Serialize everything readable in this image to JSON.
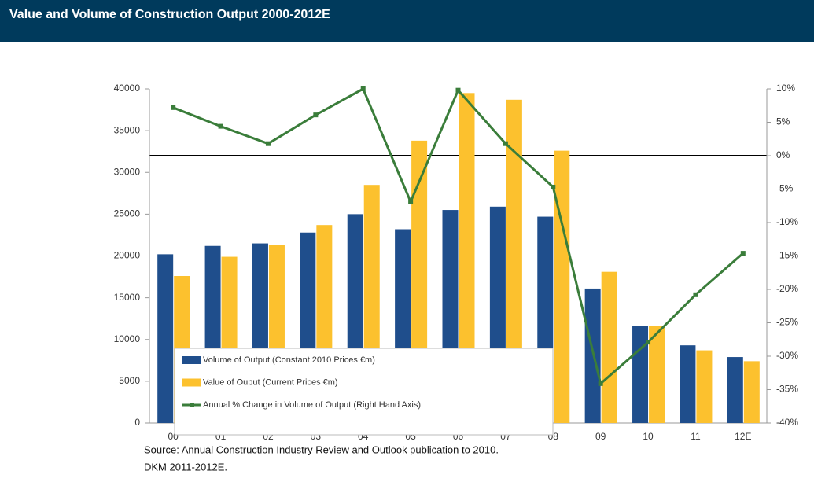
{
  "chart_data": {
    "type": "bar_line",
    "title": "Value and Volume of Construction Output 2000-2012E",
    "categories": [
      "00",
      "01",
      "02",
      "03",
      "04",
      "05",
      "06",
      "07",
      "08",
      "09",
      "10",
      "11",
      "12E"
    ],
    "series": [
      {
        "name": "Volume of Output (Constant 2010 Prices €m)",
        "color": "#1f4e8c",
        "type": "bar",
        "values": [
          20200,
          21200,
          21500,
          22800,
          25000,
          23200,
          25500,
          25900,
          24700,
          16100,
          11600,
          9300,
          7900
        ]
      },
      {
        "name": "Value of Ouput (Current Prices €m)",
        "color": "#fcc12e",
        "type": "bar",
        "values": [
          17600,
          19900,
          21300,
          23700,
          28500,
          33800,
          39500,
          38700,
          32600,
          18100,
          11600,
          8700,
          7400
        ]
      },
      {
        "name": "Annual % Change in Volume of Output (Right Hand Axis)",
        "color": "#3a7d3a",
        "type": "line",
        "axis": "y2",
        "values": [
          7.2,
          4.4,
          1.8,
          6.1,
          10,
          -6.9,
          9.8,
          1.8,
          -4.7,
          -34.1,
          -27.9,
          -20.8,
          -14.6
        ]
      }
    ],
    "ylim": [
      0,
      40000
    ],
    "yticks": [
      0,
      5000,
      10000,
      15000,
      20000,
      25000,
      30000,
      35000,
      40000
    ],
    "y2lim": [
      -40,
      10
    ],
    "y2ticks": [
      {
        "value": -40,
        "label": "-40%"
      },
      {
        "value": -35,
        "label": "-35%"
      },
      {
        "value": -30,
        "label": "-30%"
      },
      {
        "value": -25,
        "label": "-25%"
      },
      {
        "value": -20,
        "label": "-20%"
      },
      {
        "value": -15,
        "label": "-15%"
      },
      {
        "value": -10,
        "label": "-10%"
      },
      {
        "value": -5,
        "label": "-5%"
      },
      {
        "value": 0,
        "label": "0%"
      },
      {
        "value": 5,
        "label": "5%"
      },
      {
        "value": 10,
        "label": "10%"
      }
    ],
    "source": [
      "Source: Annual Construction Industry Review and Outlook publication to 2010.",
      "DKM 2011-2012E."
    ]
  }
}
